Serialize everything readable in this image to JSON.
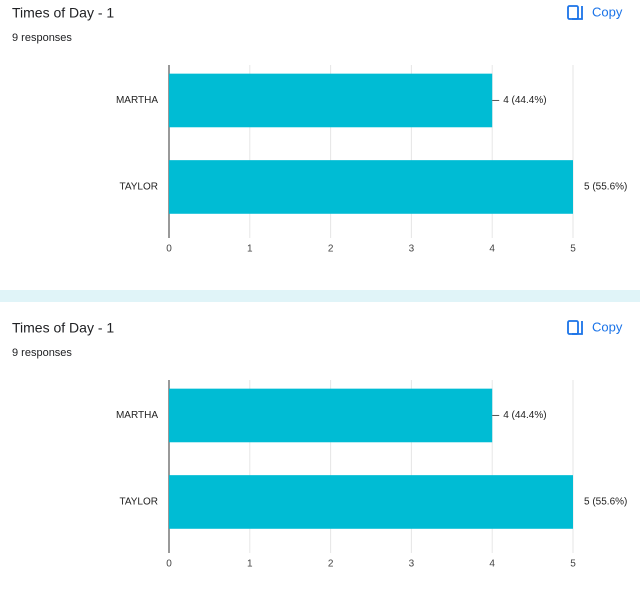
{
  "chart_data": [
    {
      "type": "bar",
      "orientation": "horizontal",
      "title": "Times of Day - 1",
      "subtitle": "9 responses",
      "action": "Copy",
      "categories": [
        "MARTHA",
        "TAYLOR"
      ],
      "values": [
        4,
        5
      ],
      "value_labels": [
        "4 (44.4%)",
        "5 (55.6%)"
      ],
      "color": "#00bcd4",
      "xlim": [
        0,
        5
      ],
      "xticks": [
        0,
        1,
        2,
        3,
        4,
        5
      ],
      "grid": true
    },
    {
      "type": "bar",
      "orientation": "horizontal",
      "title": "Times of Day - 1",
      "subtitle": "9 responses",
      "action": "Copy",
      "categories": [
        "MARTHA",
        "TAYLOR"
      ],
      "values": [
        4,
        5
      ],
      "value_labels": [
        "4 (44.4%)",
        "5 (55.6%)"
      ],
      "color": "#00bcd4",
      "xlim": [
        0,
        5
      ],
      "xticks": [
        0,
        1,
        2,
        3,
        4,
        5
      ],
      "grid": true
    }
  ]
}
